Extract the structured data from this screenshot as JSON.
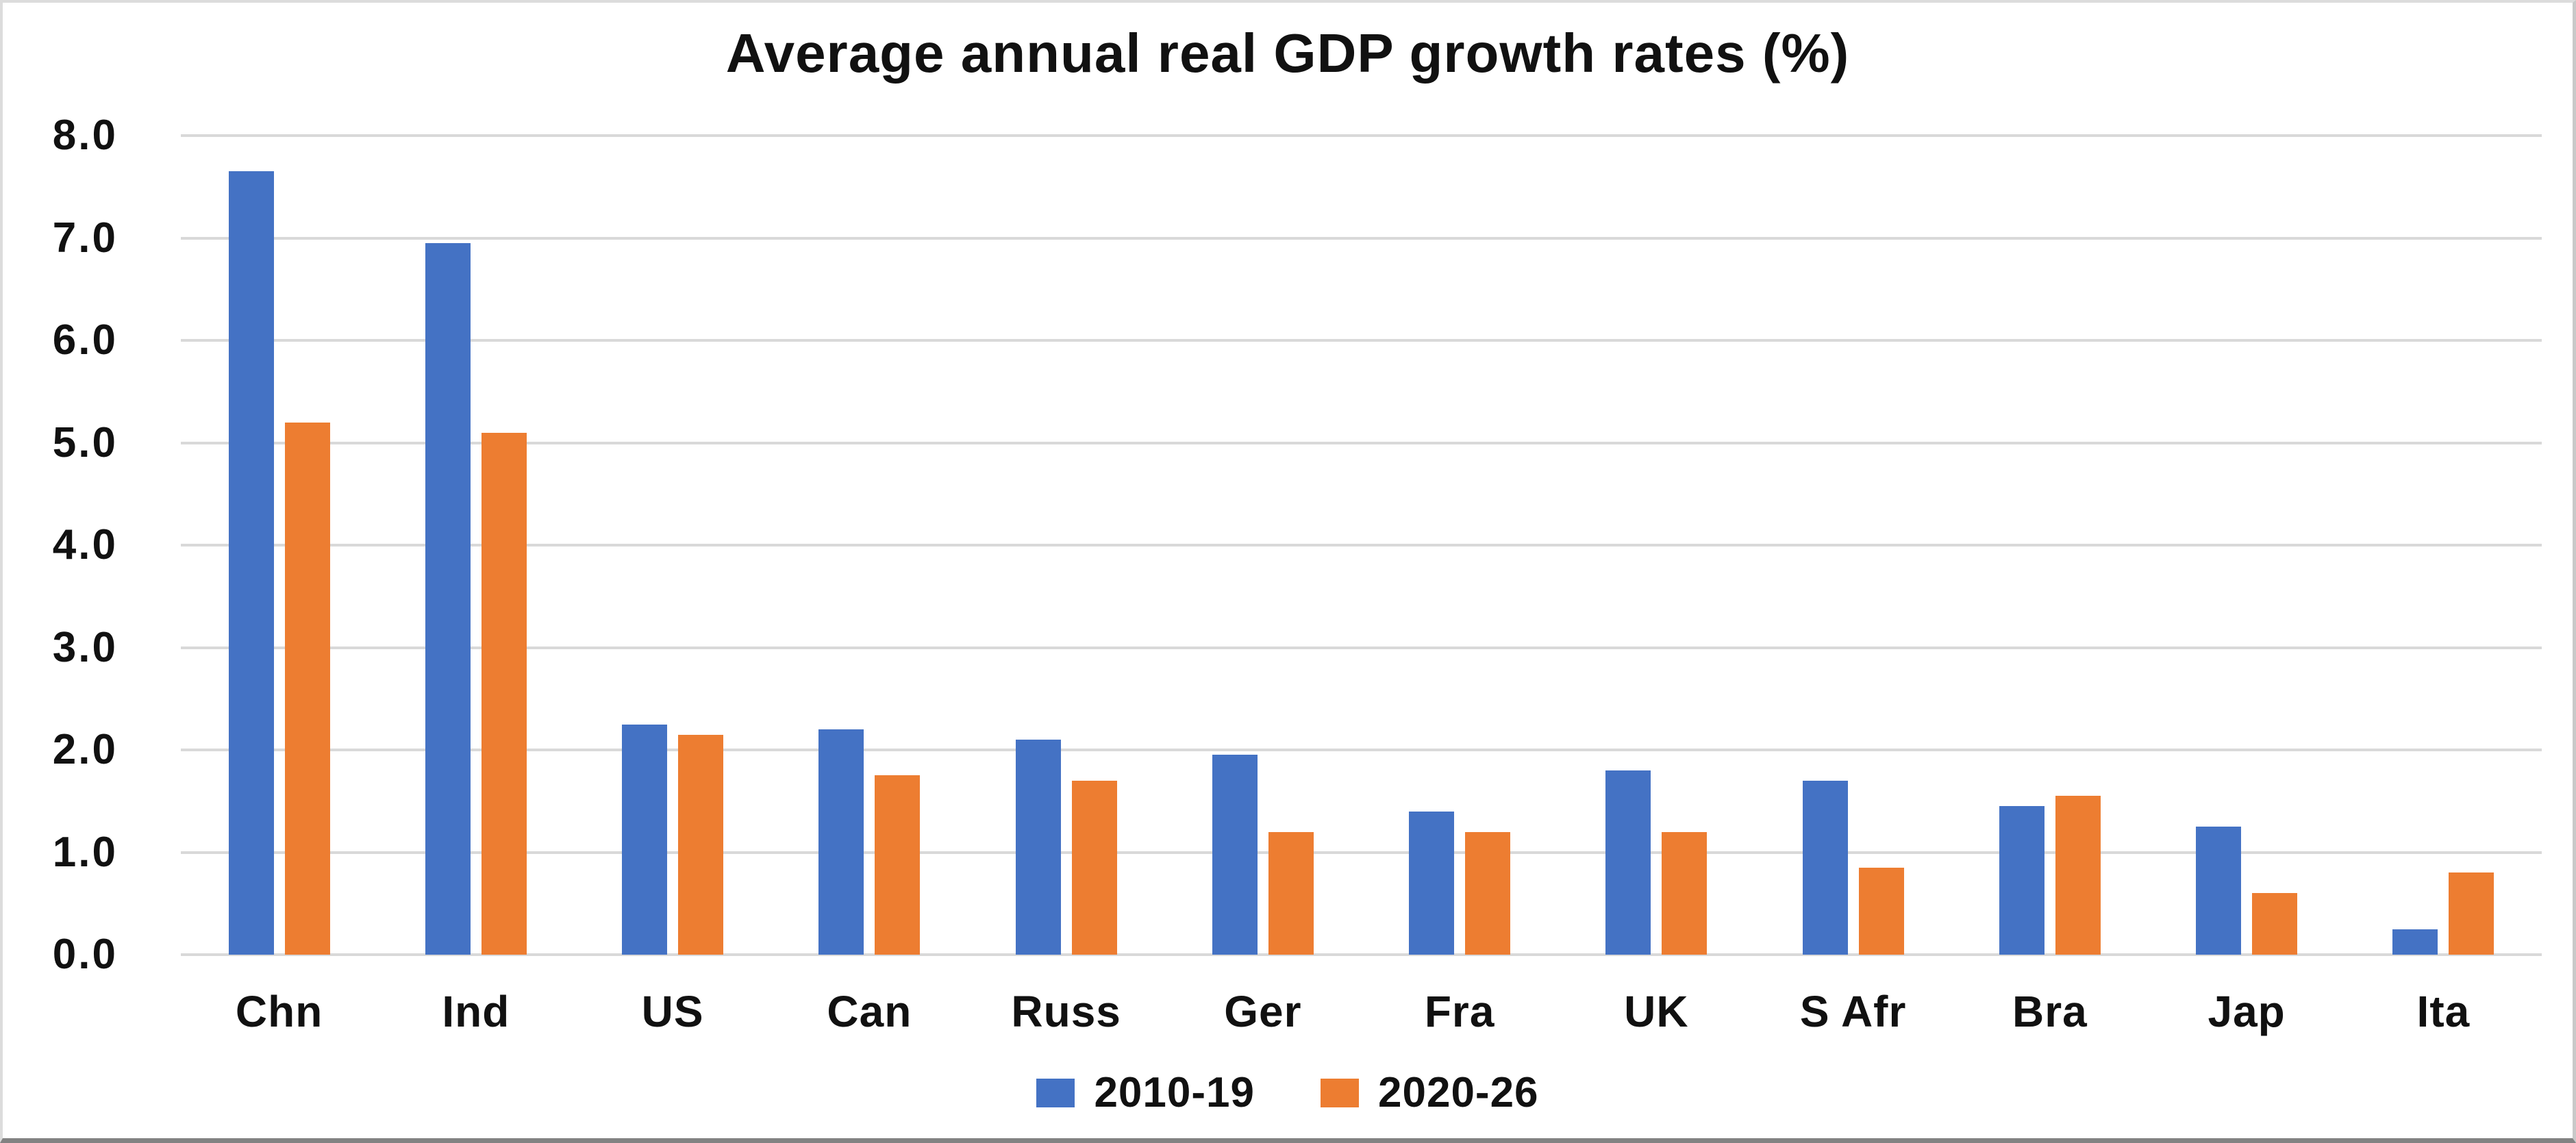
{
  "chart_title": "Average annual real GDP growth rates (%)",
  "chart_data": {
    "type": "bar",
    "title": "Average annual real GDP growth rates (%)",
    "categories": [
      "Chn",
      "Ind",
      "US",
      "Can",
      "Russ",
      "Ger",
      "Fra",
      "UK",
      "S Afr",
      "Bra",
      "Jap",
      "Ita"
    ],
    "series": [
      {
        "name": "2010-19",
        "color": "#4472C4",
        "values": [
          7.65,
          6.95,
          2.25,
          2.2,
          2.1,
          1.95,
          1.4,
          1.8,
          1.7,
          1.45,
          1.25,
          0.25
        ]
      },
      {
        "name": "2020-26",
        "color": "#ED7D31",
        "values": [
          5.2,
          5.1,
          2.15,
          1.75,
          1.7,
          1.2,
          1.2,
          1.2,
          0.85,
          1.55,
          0.6,
          0.8
        ]
      }
    ],
    "xlabel": "",
    "ylabel": "",
    "ylim": [
      0,
      8
    ],
    "ytick_step": 1,
    "ytick_format_decimals": 1,
    "grid": "horizontal",
    "gridline_color": "#D9D9D9",
    "legend_position": "bottom-center",
    "background_color": "#FFFFFF"
  },
  "legend": {
    "items": [
      {
        "label": "2010-19",
        "color": "#4472C4"
      },
      {
        "label": "2020-26",
        "color": "#ED7D31"
      }
    ]
  }
}
